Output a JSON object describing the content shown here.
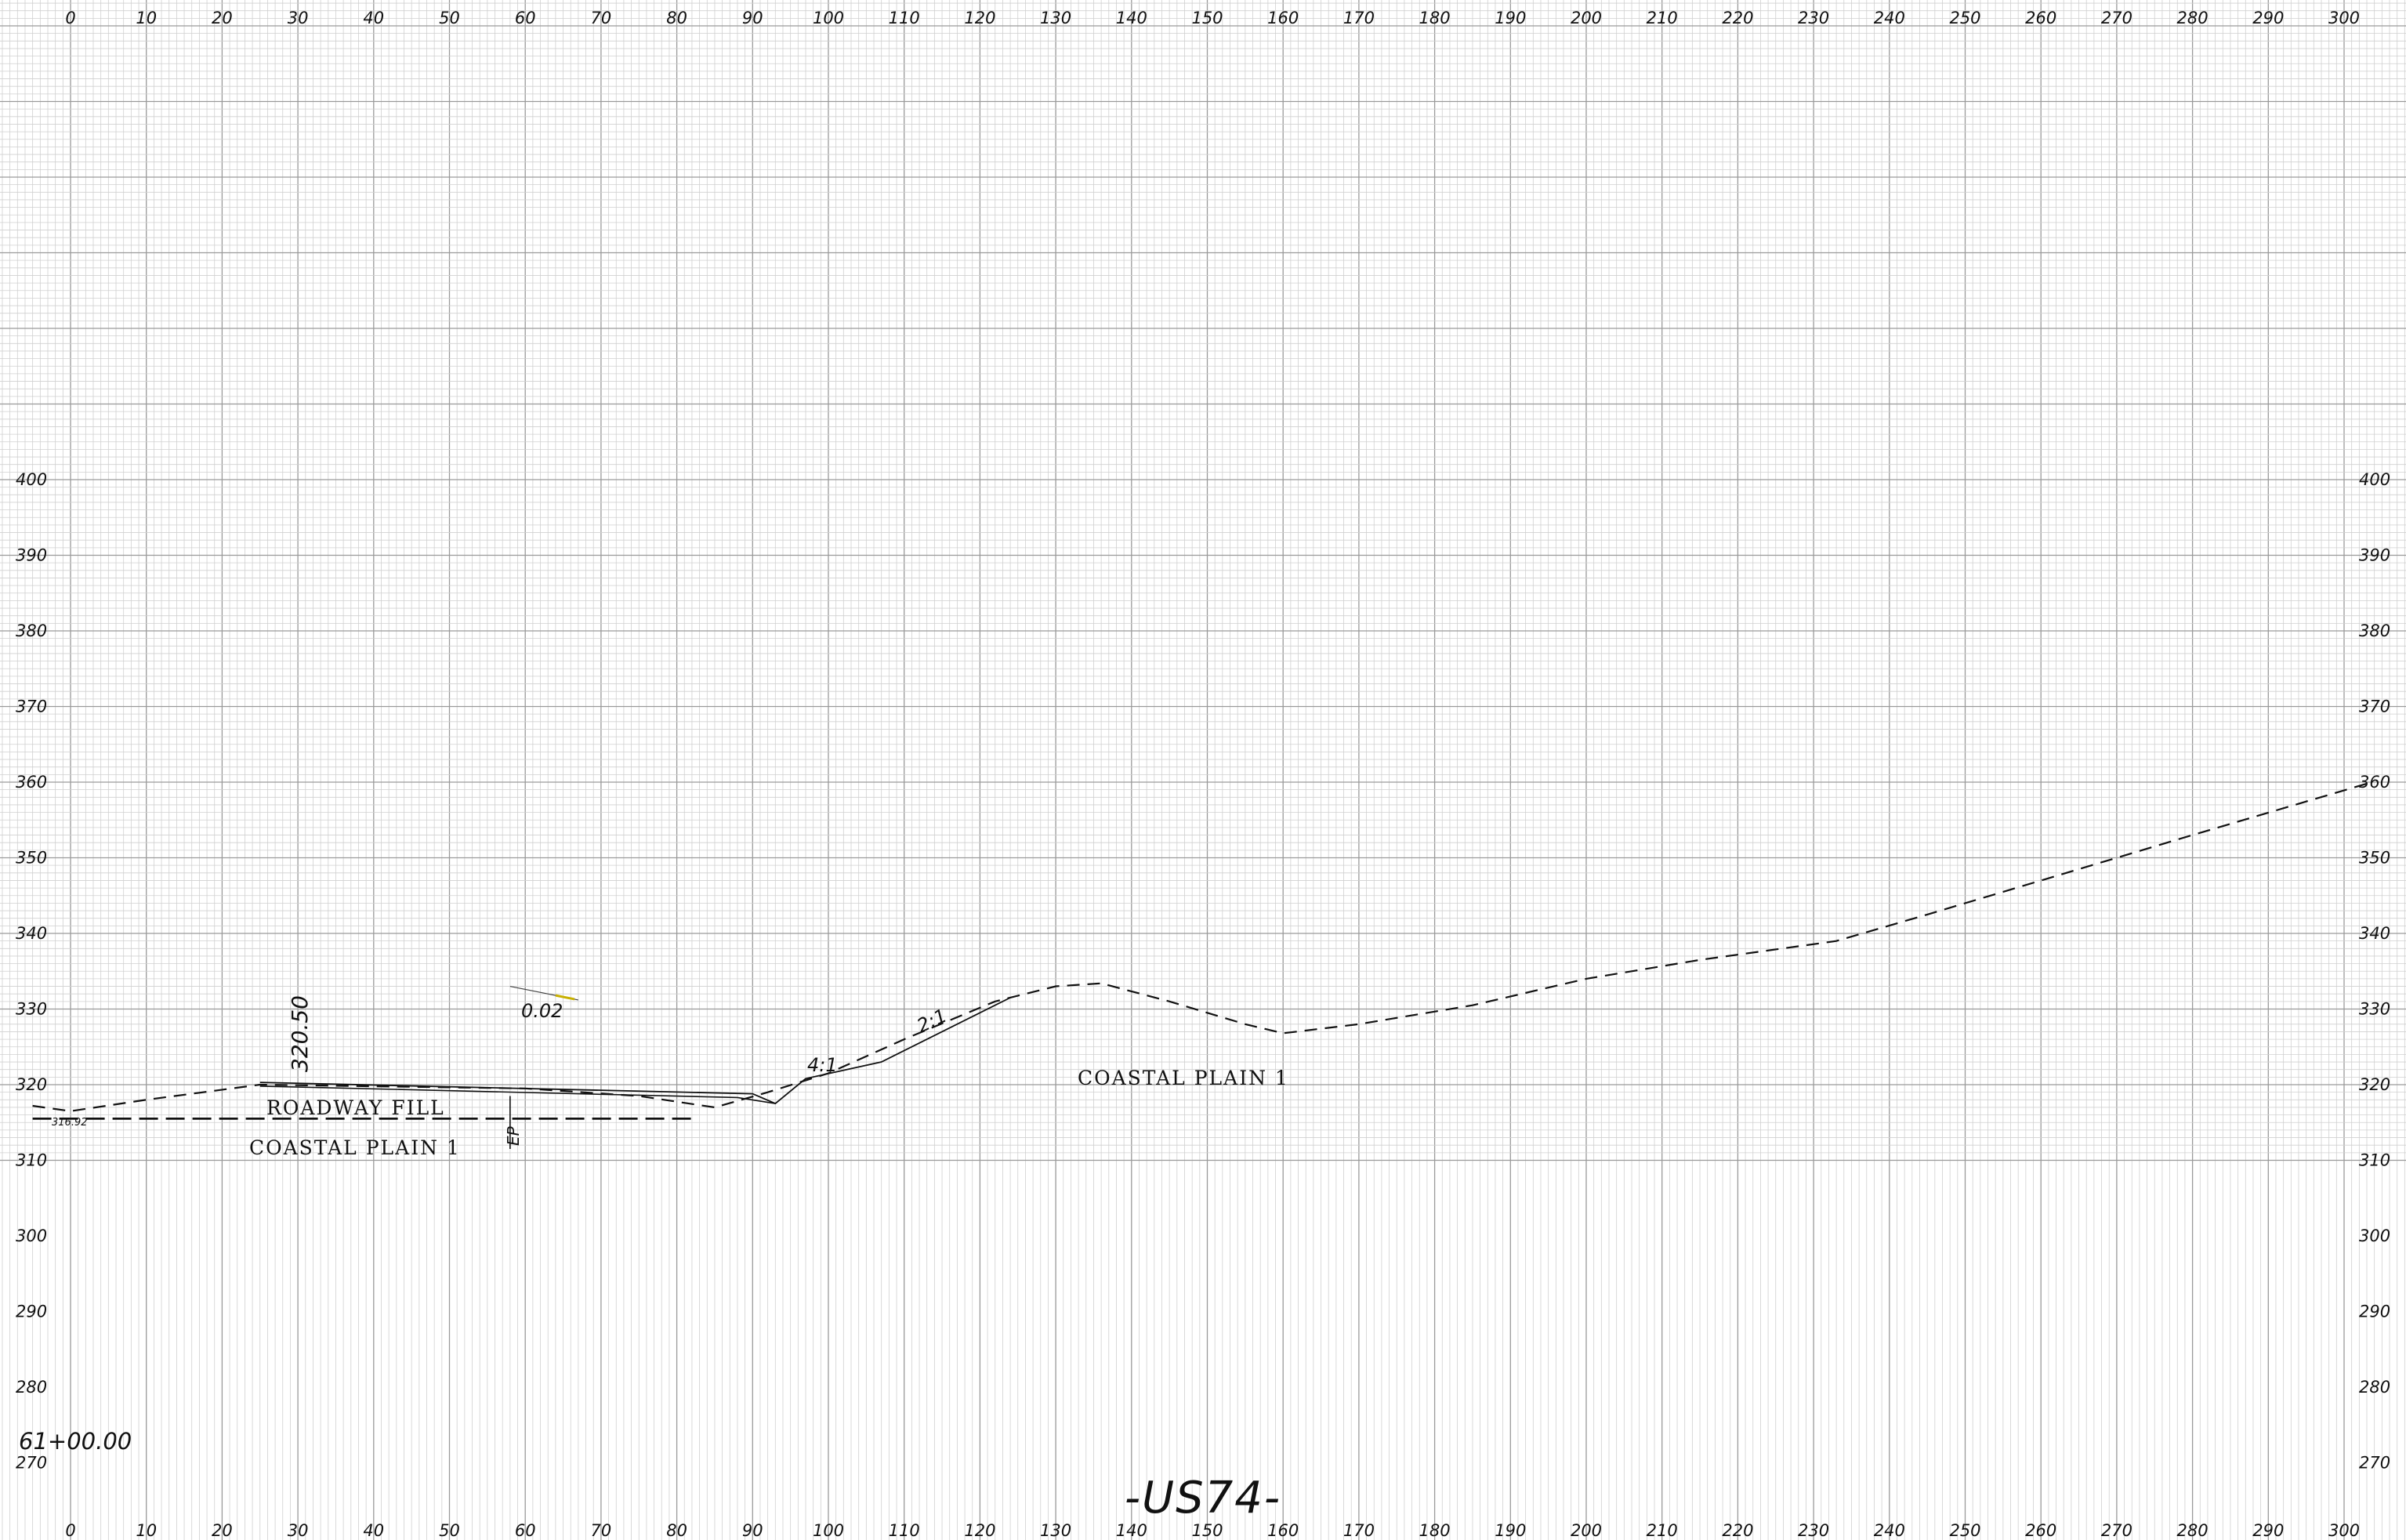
{
  "drawing": {
    "title": "-US74-",
    "station": "61+00.00",
    "x_axis_labels": [
      "0",
      "10",
      "20",
      "30",
      "40",
      "50",
      "60",
      "70",
      "80",
      "90",
      "100",
      "110",
      "120",
      "130",
      "140",
      "150",
      "160",
      "170",
      "180",
      "190",
      "200",
      "210",
      "220",
      "230",
      "240",
      "250",
      "260",
      "270",
      "280",
      "290",
      "300"
    ],
    "y_axis_labels": [
      "400",
      "390",
      "380",
      "370",
      "360",
      "350",
      "340",
      "330",
      "320",
      "310",
      "300",
      "290",
      "280",
      "270"
    ],
    "annotations": {
      "fill_label": "ROADWAY FILL",
      "soil_left": "COASTAL PLAIN 1",
      "soil_right": "COASTAL PLAIN 1",
      "elevation": "320.50",
      "cross_slope": "0.02",
      "ep_label": "EP",
      "slope_4_1": "4:1",
      "slope_2_1": "2:1",
      "small_elev": "316.92"
    }
  },
  "chart_data": {
    "type": "line",
    "x_range": [
      -5,
      310
    ],
    "y_range": [
      265,
      405
    ],
    "series": [
      {
        "points": [
          [
            -5,
            317.2
          ],
          [
            0,
            316.5
          ],
          [
            10,
            318
          ],
          [
            25,
            320
          ],
          [
            60,
            319.5
          ],
          [
            75,
            318.5
          ],
          [
            85,
            317
          ],
          [
            92,
            319
          ],
          [
            100,
            321.5
          ],
          [
            110,
            326
          ],
          [
            122,
            331
          ],
          [
            130,
            333
          ],
          [
            136,
            333.4
          ],
          [
            145,
            331
          ],
          [
            155,
            328
          ],
          [
            160,
            326.8
          ],
          [
            170,
            328
          ],
          [
            185,
            330.5
          ],
          [
            200,
            334
          ],
          [
            215,
            336.5
          ],
          [
            233,
            339
          ],
          [
            245,
            342.5
          ],
          [
            260,
            347
          ],
          [
            280,
            353
          ],
          [
            303,
            359.8
          ]
        ]
      },
      {
        "points": [
          [
            -5,
            315.5
          ],
          [
            82,
            315.5
          ]
        ]
      },
      {
        "points": [
          [
            25,
            320.3
          ],
          [
            90,
            318.8
          ],
          [
            93,
            317.5
          ],
          [
            97,
            320.8
          ],
          [
            107,
            323
          ],
          [
            124,
            331.5
          ]
        ]
      },
      {
        "points": [
          [
            25,
            319.8
          ],
          [
            88,
            318.3
          ],
          [
            93,
            317.5
          ]
        ]
      }
    ]
  }
}
